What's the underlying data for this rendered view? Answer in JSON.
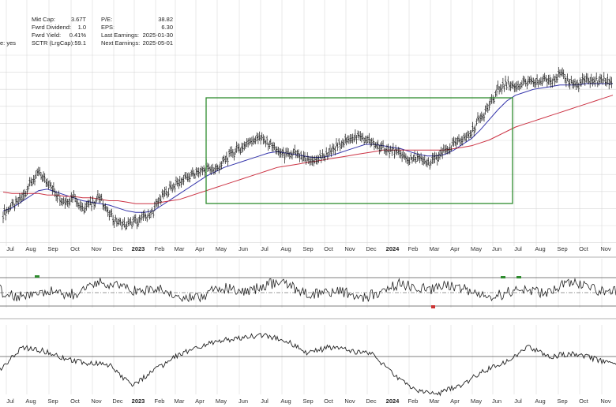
{
  "info_panel": {
    "left_partial_label": "e: yes",
    "col1": [
      {
        "label": "Mkt Cap:",
        "value": "3.67T"
      },
      {
        "label": "Fwrd Dividend:",
        "value": "1.0"
      },
      {
        "label": "Fwrd Yield:",
        "value": "0.41%"
      },
      {
        "label": "SCTR (LrgCap):",
        "value": "59.1"
      }
    ],
    "col2": [
      {
        "label": "P/E:",
        "value": "38.82"
      },
      {
        "label": "EPS:",
        "value": "6.30"
      },
      {
        "label": "Last Earnings:",
        "value": "2025-01-30"
      },
      {
        "label": "Next Earnings:",
        "value": "2025-05-01"
      }
    ]
  },
  "chart_data": [
    {
      "type": "line",
      "panel": "price",
      "x_labels": [
        "Jul",
        "Aug",
        "Sep",
        "Oct",
        "Nov",
        "Dec",
        "2023",
        "Feb",
        "Mar",
        "Apr",
        "May",
        "Jun",
        "Jul",
        "Aug",
        "Sep",
        "Oct",
        "Nov",
        "Dec",
        "2024",
        "Feb",
        "Mar",
        "Apr",
        "May",
        "Jun",
        "Jul",
        "Aug",
        "Sep",
        "Oct",
        "Nov"
      ],
      "year_labels": [
        "2023",
        "2024"
      ],
      "grid": true,
      "series": [
        {
          "style": "ohlc-bars",
          "color": "#000000",
          "values": [
            138,
            143,
            147,
            158,
            166,
            160,
            152,
            146,
            151,
            141,
            145,
            150,
            138,
            132,
            130,
            133,
            135,
            140,
            150,
            156,
            160,
            164,
            166,
            170,
            168,
            175,
            180,
            184,
            189,
            190,
            187,
            182,
            178,
            180,
            176,
            174,
            177,
            180,
            186,
            190,
            192,
            190,
            186,
            184,
            182,
            178,
            175,
            176,
            172,
            176,
            181,
            186,
            189,
            194,
            205,
            212,
            224,
            228,
            226,
            229,
            228,
            230,
            231,
            234,
            230,
            227,
            231,
            230,
            230,
            229
          ]
        },
        {
          "style": "line",
          "color": "#3333aa",
          "values": [
            140,
            142,
            146,
            150,
            154,
            155,
            153,
            151,
            149,
            147,
            146,
            145,
            144,
            142,
            140,
            139,
            139,
            140,
            144,
            148,
            152,
            156,
            160,
            164,
            167,
            170,
            172,
            174,
            176,
            178,
            180,
            181,
            180,
            179,
            178,
            177,
            177,
            178,
            180,
            182,
            184,
            186,
            186,
            185,
            184,
            183,
            181,
            179,
            178,
            178,
            179,
            182,
            186,
            190,
            196,
            203,
            210,
            216,
            220,
            222,
            224,
            225,
            226,
            227,
            227,
            227,
            228,
            228,
            228,
            228
          ]
        },
        {
          "style": "line",
          "color": "#cc3344",
          "values": [
            153,
            152,
            152,
            152,
            152,
            151,
            151,
            150,
            150,
            149,
            149,
            148,
            147,
            147,
            146,
            145,
            145,
            145,
            146,
            147,
            148,
            150,
            152,
            154,
            156,
            158,
            160,
            162,
            164,
            166,
            168,
            170,
            171,
            172,
            173,
            174,
            175,
            176,
            177,
            178,
            179,
            180,
            181,
            182,
            182,
            182,
            182,
            182,
            182,
            182,
            182,
            183,
            184,
            185,
            187,
            189,
            192,
            195,
            198,
            200,
            202,
            204,
            206,
            208,
            210,
            212,
            214,
            216,
            218,
            220
          ]
        }
      ]
    },
    {
      "type": "line",
      "panel": "oscillator-1",
      "grid": true
    },
    {
      "type": "line",
      "panel": "oscillator-2",
      "grid": true
    }
  ]
}
